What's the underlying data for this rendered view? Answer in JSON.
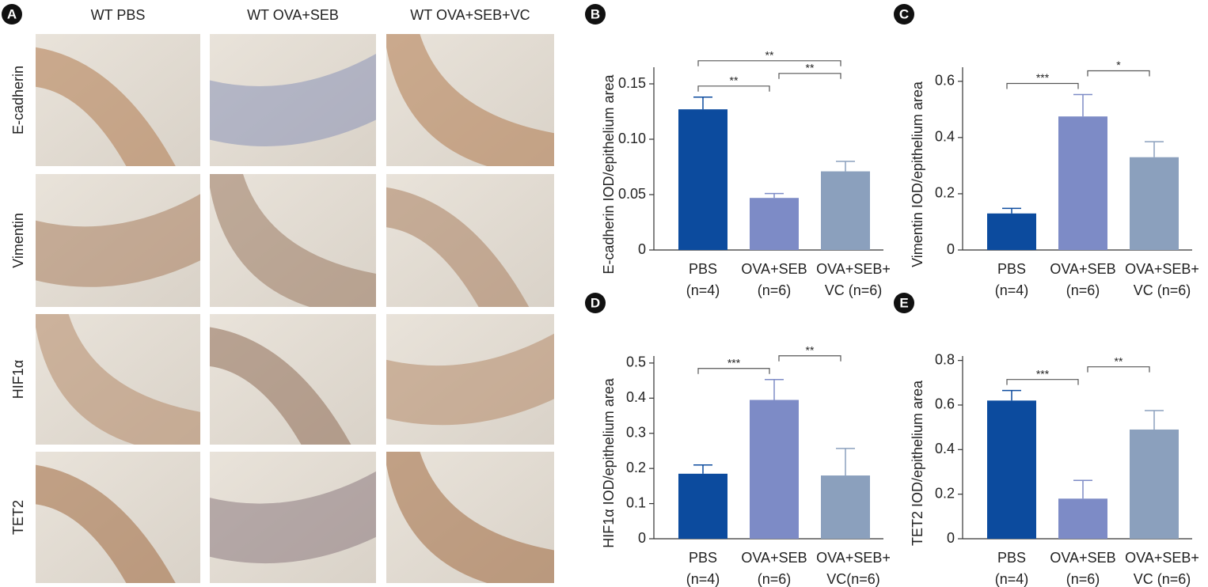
{
  "panel_a": {
    "label": "A",
    "columns": [
      "WT PBS",
      "WT OVA+SEB",
      "WT OVA+SEB+VC"
    ],
    "rows": [
      "E-cadherin",
      "Vimentin",
      "HIF1α",
      "TET2"
    ]
  },
  "chart_data": [
    {
      "type": "bar",
      "panel": "B",
      "ylabel": "E-cadherin IOD/epithelium area",
      "categories": [
        [
          "PBS",
          "(n=4)"
        ],
        [
          "OVA+SEB",
          "(n=6)"
        ],
        [
          "OVA+SEB+",
          "VC (n=6)"
        ]
      ],
      "values": [
        0.127,
        0.047,
        0.071
      ],
      "errors": [
        0.011,
        0.004,
        0.009
      ],
      "colors": [
        "#0c4b9e",
        "#7d8bc6",
        "#8ba0bd"
      ],
      "ylim": [
        0,
        0.165
      ],
      "yticks": [
        0,
        0.05,
        {
          "value": 0.1,
          "label": "0.10"
        },
        0.15
      ],
      "brackets": [
        {
          "label": "**",
          "between": [
            0,
            1
          ]
        },
        {
          "label": "**",
          "between": [
            1,
            2
          ]
        },
        {
          "label": "**",
          "between": [
            0,
            2
          ]
        }
      ]
    },
    {
      "type": "bar",
      "panel": "C",
      "ylabel": "Vimentin IOD/epithelium area",
      "categories": [
        [
          "PBS",
          "(n=4)"
        ],
        [
          "OVA+SEB",
          "(n=6)"
        ],
        [
          "OVA+SEB+",
          "VC (n=6)"
        ]
      ],
      "values": [
        0.13,
        0.475,
        0.33
      ],
      "errors": [
        0.018,
        0.078,
        0.055
      ],
      "colors": [
        "#0c4b9e",
        "#7d8bc6",
        "#8ba0bd"
      ],
      "ylim": [
        0,
        0.65
      ],
      "yticks": [
        0,
        0.2,
        0.4,
        0.6
      ],
      "brackets": [
        {
          "label": "***",
          "between": [
            0,
            1
          ]
        },
        {
          "label": "*",
          "between": [
            1,
            2
          ]
        }
      ]
    },
    {
      "type": "bar",
      "panel": "D",
      "ylabel": "HIF1α IOD/epithelium area",
      "categories": [
        [
          "PBS",
          "(n=4)"
        ],
        [
          "OVA+SEB",
          "(n=6)"
        ],
        [
          "OVA+SEB+",
          "VC(n=6)"
        ]
      ],
      "values": [
        0.185,
        0.395,
        0.18
      ],
      "errors": [
        0.025,
        0.058,
        0.077
      ],
      "colors": [
        "#0c4b9e",
        "#7d8bc6",
        "#8ba0bd"
      ],
      "ylim": [
        0,
        0.52
      ],
      "yticks": [
        0,
        0.1,
        0.2,
        0.3,
        0.4,
        0.5
      ],
      "brackets": [
        {
          "label": "***",
          "between": [
            0,
            1
          ]
        },
        {
          "label": "**",
          "between": [
            1,
            2
          ]
        }
      ]
    },
    {
      "type": "bar",
      "panel": "E",
      "ylabel": "TET2 IOD/epithelium area",
      "categories": [
        [
          "PBS",
          "(n=4)"
        ],
        [
          "OVA+SEB",
          "(n=6)"
        ],
        [
          "OVA+SEB+",
          "VC (n=6)"
        ]
      ],
      "values": [
        0.62,
        0.18,
        0.49
      ],
      "errors": [
        0.045,
        0.082,
        0.085
      ],
      "colors": [
        "#0c4b9e",
        "#7d8bc6",
        "#8ba0bd"
      ],
      "ylim": [
        0,
        0.82
      ],
      "yticks": [
        0,
        0.2,
        0.4,
        0.6,
        0.8
      ],
      "brackets": [
        {
          "label": "***",
          "between": [
            0,
            1
          ]
        },
        {
          "label": "**",
          "between": [
            1,
            2
          ]
        }
      ]
    }
  ]
}
